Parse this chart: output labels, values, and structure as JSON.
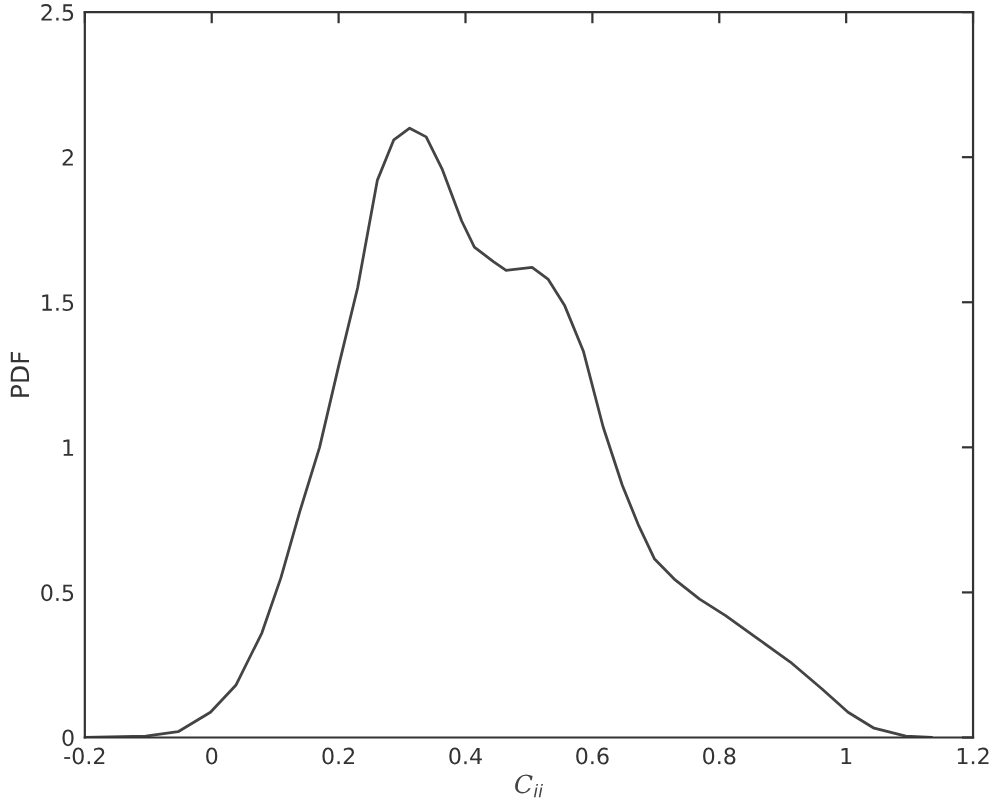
{
  "chart_data": {
    "type": "line",
    "xlabel": "C$_{ii}$",
    "ylabel": "PDF",
    "x": [
      -0.2,
      -0.104,
      -0.053,
      -0.002,
      0.038,
      0.079,
      0.109,
      0.139,
      0.17,
      0.2,
      0.23,
      0.261,
      0.287,
      0.312,
      0.338,
      0.363,
      0.394,
      0.414,
      0.444,
      0.464,
      0.505,
      0.53,
      0.556,
      0.586,
      0.617,
      0.647,
      0.673,
      0.698,
      0.729,
      0.769,
      0.81,
      0.861,
      0.912,
      0.962,
      1.003,
      1.044,
      1.094,
      1.135
    ],
    "series": [
      {
        "color": "#444444",
        "values": [
          0,
          0.005,
          0.02,
          0.087,
          0.18,
          0.36,
          0.55,
          0.78,
          1.0,
          1.28,
          1.55,
          1.92,
          2.06,
          2.1,
          2.07,
          1.96,
          1.78,
          1.69,
          1.64,
          1.61,
          1.62,
          1.58,
          1.49,
          1.33,
          1.07,
          0.87,
          0.73,
          0.615,
          0.546,
          0.477,
          0.42,
          0.34,
          0.26,
          0.167,
          0.087,
          0.032,
          0.005,
          0
        ]
      }
    ],
    "xlim": [
      -0.2,
      1.2
    ],
    "xticks": [
      -0.2,
      0,
      0.2,
      0.4,
      0.6,
      0.8,
      1,
      1.2
    ],
    "ylim": [
      0,
      2.5
    ],
    "yticks": [
      0,
      0.5,
      1,
      1.5,
      2,
      2.5
    ],
    "grid": false,
    "marker": "none",
    "line_style": "solid"
  }
}
